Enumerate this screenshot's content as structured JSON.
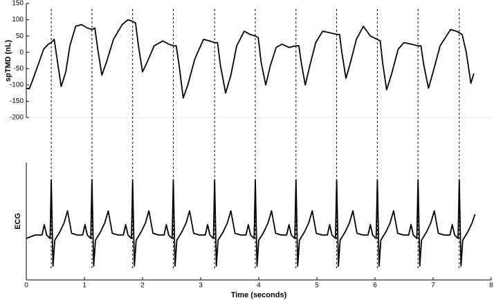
{
  "chart_data": [
    {
      "type": "line",
      "y_label": "spTMD (nL)",
      "xlim": [
        0,
        8
      ],
      "ylim": [
        -200,
        150
      ],
      "yticks": [
        150,
        100,
        50,
        0,
        -50,
        -100,
        -150,
        -200
      ],
      "x": [
        0,
        0.05,
        0.1,
        0.2,
        0.3,
        0.38,
        0.43,
        0.48,
        0.53,
        0.6,
        0.68,
        0.75,
        0.85,
        0.95,
        1.05,
        1.13,
        1.18,
        1.23,
        1.3,
        1.38,
        1.5,
        1.65,
        1.75,
        1.83,
        1.88,
        1.93,
        2.0,
        2.08,
        2.2,
        2.35,
        2.45,
        2.53,
        2.58,
        2.63,
        2.7,
        2.78,
        2.9,
        3.05,
        3.15,
        3.24,
        3.29,
        3.34,
        3.43,
        3.52,
        3.62,
        3.75,
        3.85,
        3.94,
        3.99,
        4.04,
        4.12,
        4.2,
        4.3,
        4.4,
        4.52,
        4.64,
        4.69,
        4.73,
        4.8,
        4.88,
        4.98,
        5.1,
        5.22,
        5.34,
        5.39,
        5.43,
        5.5,
        5.58,
        5.68,
        5.8,
        5.92,
        6.04,
        6.09,
        6.13,
        6.2,
        6.28,
        6.4,
        6.5,
        6.62,
        6.74,
        6.79,
        6.84,
        6.92,
        7.0,
        7.12,
        7.3,
        7.4,
        7.45,
        7.5,
        7.57,
        7.65,
        7.7
      ],
      "series": [
        {
          "color": "#000000",
          "values": [
            -110,
            -112,
            -90,
            -40,
            10,
            25,
            30,
            40,
            -20,
            -105,
            -60,
            20,
            80,
            85,
            75,
            70,
            75,
            10,
            -70,
            -30,
            40,
            85,
            100,
            95,
            90,
            20,
            -60,
            -30,
            20,
            35,
            25,
            20,
            20,
            -40,
            -140,
            -100,
            -20,
            40,
            35,
            30,
            30,
            -40,
            -125,
            -70,
            20,
            65,
            55,
            50,
            45,
            -30,
            -100,
            -40,
            15,
            25,
            15,
            20,
            20,
            -30,
            -100,
            -40,
            30,
            65,
            60,
            55,
            55,
            0,
            -80,
            -30,
            40,
            80,
            50,
            40,
            35,
            -30,
            -115,
            -70,
            10,
            30,
            25,
            20,
            20,
            -40,
            -110,
            -60,
            20,
            70,
            65,
            60,
            55,
            0,
            -95,
            -65
          ]
        }
      ]
    },
    {
      "type": "line",
      "y_label": "ECG",
      "x_label": "Time (seconds)",
      "xlim": [
        0,
        8
      ],
      "ylim": [
        -1.3,
        2.1
      ],
      "xticks": [
        0,
        1,
        2,
        3,
        4,
        5,
        6,
        7,
        8
      ],
      "vlines": [
        0.43,
        1.13,
        1.83,
        2.53,
        3.24,
        3.94,
        4.64,
        5.34,
        6.04,
        6.74,
        7.45
      ],
      "x": [
        0,
        0.15,
        0.27,
        0.31,
        0.35,
        0.41,
        0.43,
        0.46,
        0.49,
        0.58,
        0.65,
        0.71,
        0.78,
        0.88,
        0.97,
        1.01,
        1.05,
        1.11,
        1.13,
        1.16,
        1.19,
        1.28,
        1.35,
        1.41,
        1.48,
        1.58,
        1.67,
        1.71,
        1.75,
        1.81,
        1.83,
        1.86,
        1.89,
        1.98,
        2.05,
        2.11,
        2.18,
        2.28,
        2.37,
        2.41,
        2.45,
        2.51,
        2.53,
        2.56,
        2.59,
        2.68,
        2.75,
        2.81,
        2.88,
        2.98,
        3.08,
        3.12,
        3.16,
        3.22,
        3.24,
        3.27,
        3.3,
        3.39,
        3.46,
        3.52,
        3.59,
        3.69,
        3.78,
        3.82,
        3.86,
        3.92,
        3.94,
        3.97,
        4.0,
        4.09,
        4.16,
        4.22,
        4.29,
        4.39,
        4.48,
        4.52,
        4.56,
        4.62,
        4.64,
        4.67,
        4.7,
        4.79,
        4.86,
        4.92,
        4.99,
        5.09,
        5.18,
        5.22,
        5.26,
        5.32,
        5.34,
        5.37,
        5.4,
        5.49,
        5.56,
        5.62,
        5.69,
        5.79,
        5.88,
        5.92,
        5.96,
        6.02,
        6.04,
        6.07,
        6.1,
        6.19,
        6.26,
        6.32,
        6.39,
        6.49,
        6.58,
        6.62,
        6.66,
        6.72,
        6.74,
        6.77,
        6.8,
        6.89,
        6.96,
        7.02,
        7.09,
        7.19,
        7.29,
        7.33,
        7.37,
        7.43,
        7.45,
        7.48,
        7.51,
        7.6,
        7.67,
        7.72
      ],
      "series": [
        {
          "color": "#000000",
          "values": [
            -0.1,
            0,
            0,
            0.3,
            0,
            -0.1,
            1.6,
            -0.9,
            -0.15,
            0.1,
            0.35,
            0.7,
            0.05,
            0,
            0,
            0.3,
            0,
            -0.1,
            1.6,
            -0.9,
            -0.15,
            0.1,
            0.35,
            0.7,
            0.05,
            0,
            0,
            0.3,
            0,
            -0.1,
            1.6,
            -0.9,
            -0.15,
            0.1,
            0.35,
            0.7,
            0.05,
            0,
            0,
            0.3,
            0,
            -0.1,
            1.6,
            -0.9,
            -0.15,
            0.1,
            0.35,
            0.7,
            0.05,
            0,
            0,
            0.3,
            0,
            -0.1,
            1.6,
            -0.9,
            -0.15,
            0.1,
            0.35,
            0.7,
            0.05,
            0,
            0,
            0.3,
            0,
            -0.1,
            1.6,
            -0.9,
            -0.15,
            0.1,
            0.35,
            0.7,
            0.05,
            0,
            0,
            0.3,
            0,
            -0.1,
            1.6,
            -0.9,
            -0.15,
            0.1,
            0.35,
            0.7,
            0.05,
            0,
            0,
            0.3,
            0,
            -0.1,
            1.6,
            -0.9,
            -0.15,
            0.1,
            0.35,
            0.7,
            0.05,
            0,
            0,
            0.3,
            0,
            -0.1,
            1.6,
            -0.9,
            -0.15,
            0.1,
            0.35,
            0.7,
            0.05,
            0,
            0,
            0.3,
            0,
            -0.1,
            1.6,
            -0.9,
            -0.15,
            0.1,
            0.35,
            0.7,
            0.05,
            0,
            0,
            0.3,
            0,
            -0.1,
            1.6,
            -0.9,
            -0.15,
            0.1,
            0.35,
            0.6
          ]
        }
      ]
    }
  ]
}
